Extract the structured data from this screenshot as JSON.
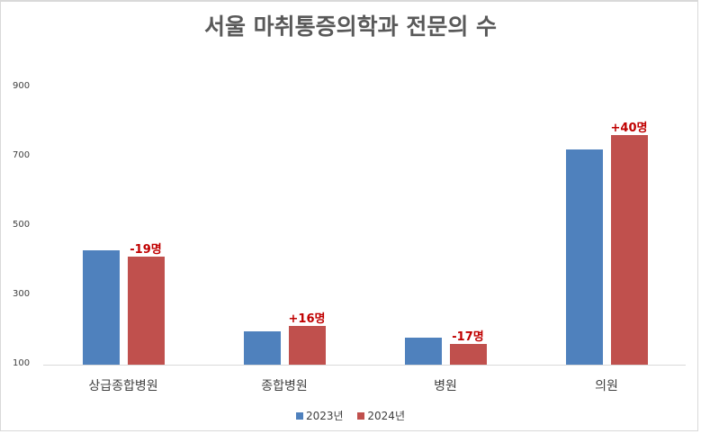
{
  "chart_data": {
    "type": "bar",
    "title": "서울 마취통증의학과 전문의 수",
    "categories": [
      "상급종합병원",
      "종합병원",
      "병원",
      "의원"
    ],
    "series": [
      {
        "name": "2023년",
        "color": "#4f81bd",
        "values": [
          431,
          196,
          177,
          722
        ]
      },
      {
        "name": "2024년",
        "color": "#c0504d",
        "values": [
          412,
          212,
          160,
          762
        ]
      }
    ],
    "annotations": [
      "-19명",
      "+16명",
      "-17명",
      "+40명"
    ],
    "annotation_color": "#c00000",
    "xlabel": "",
    "ylabel": "",
    "ylim": [
      100,
      900
    ],
    "yticks": [
      "900",
      "700",
      "500",
      "300",
      "100"
    ],
    "grid": false,
    "legend_position": "bottom"
  }
}
